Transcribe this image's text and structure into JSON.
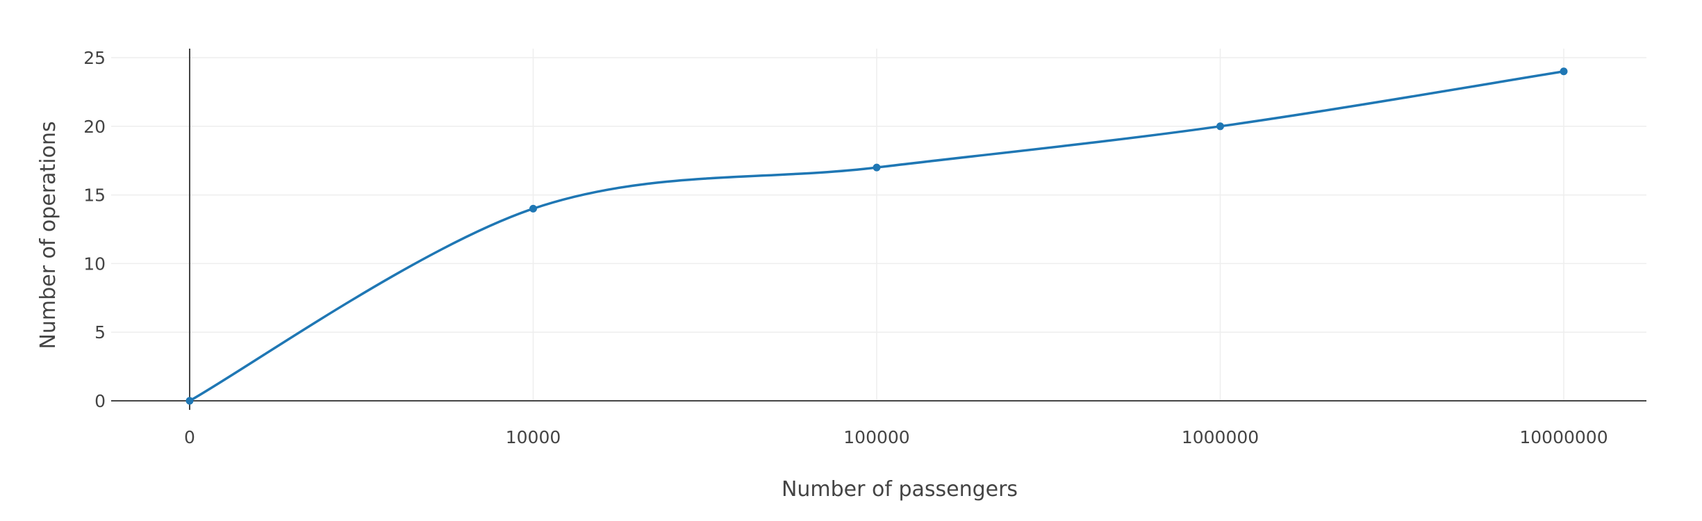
{
  "chart_data": {
    "type": "line",
    "title": "",
    "xlabel": "Number of passengers",
    "ylabel": "Number of operations",
    "x_axis_type": "category",
    "categories": [
      "0",
      "10000",
      "100000",
      "1000000",
      "10000000"
    ],
    "series": [
      {
        "values": [
          0,
          14,
          17,
          20,
          24
        ],
        "color": "#1f77b4",
        "markers": true,
        "line_shape": "spline"
      }
    ],
    "ylim": [
      0,
      25
    ],
    "y_ticks": [
      0,
      5,
      10,
      15,
      20,
      25
    ],
    "grid": true,
    "legend": "none"
  }
}
